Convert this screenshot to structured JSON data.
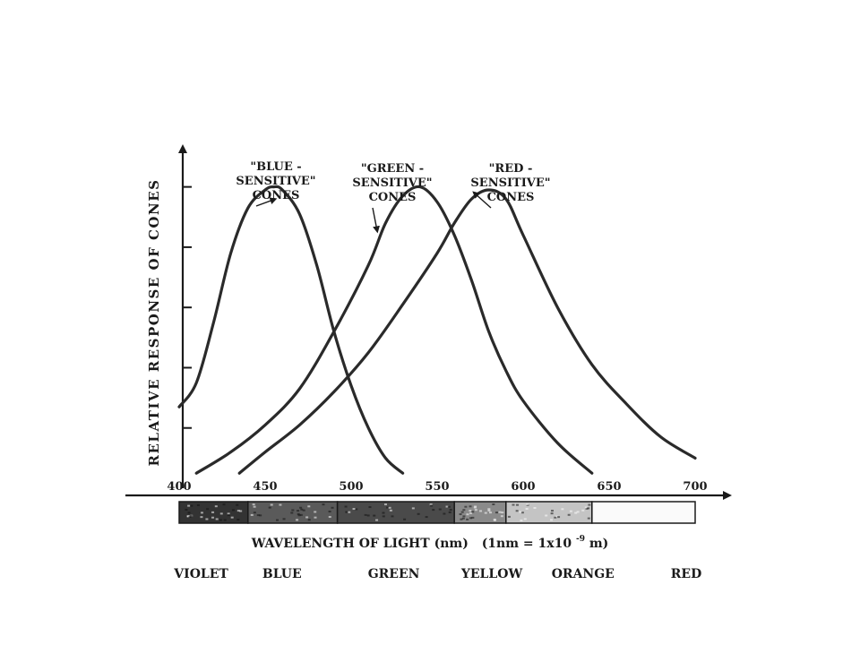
{
  "chart_data": {
    "type": "line",
    "ylabel": "RELATIVE RESPONSE OF CONES",
    "xlabel": "WAVELENGTH OF LIGHT (nm)",
    "xlabel_note": "(1nm = 1x10",
    "xlabel_note_end": " m)",
    "xlabel_exponent": "-9",
    "xlim": [
      400,
      700
    ],
    "x_ticks": [
      "400",
      "450",
      "500",
      "550",
      "600",
      "650",
      "700"
    ],
    "ylim": [
      0,
      1.1
    ],
    "y_tick_values": [
      0.2,
      0.4,
      0.6,
      0.8,
      1.0
    ],
    "grid": false,
    "series": [
      {
        "name": "\"BLUE - SENSITIVE\" CONES",
        "label_lines": [
          "\"BLUE -",
          "SENSITIVE\"",
          "CONES"
        ],
        "x": [
          400,
          410,
          420,
          430,
          440,
          450,
          455,
          460,
          470,
          480,
          490,
          500,
          510,
          520,
          530
        ],
        "y": [
          0.27,
          0.35,
          0.55,
          0.78,
          0.93,
          0.99,
          1.0,
          0.99,
          0.91,
          0.74,
          0.52,
          0.34,
          0.2,
          0.1,
          0.05
        ]
      },
      {
        "name": "\"GREEN - SENSITIVE\" CONES",
        "label_lines": [
          "\"GREEN -",
          "SENSITIVE\"",
          "CONES"
        ],
        "x": [
          410,
          430,
          450,
          470,
          490,
          510,
          520,
          530,
          540,
          550,
          560,
          570,
          580,
          590,
          600,
          620,
          640
        ],
        "y": [
          0.05,
          0.12,
          0.21,
          0.33,
          0.52,
          0.74,
          0.88,
          0.97,
          1.0,
          0.95,
          0.84,
          0.69,
          0.52,
          0.39,
          0.29,
          0.15,
          0.05
        ]
      },
      {
        "name": "\"RED - SENSITIVE\" CONES",
        "label_lines": [
          "\"RED -",
          "SENSITIVE\"",
          "CONES"
        ],
        "x": [
          435,
          450,
          470,
          490,
          510,
          530,
          550,
          560,
          570,
          580,
          590,
          600,
          620,
          640,
          660,
          680,
          700
        ],
        "y": [
          0.05,
          0.12,
          0.21,
          0.32,
          0.45,
          0.61,
          0.78,
          0.88,
          0.96,
          0.99,
          0.96,
          0.84,
          0.6,
          0.41,
          0.28,
          0.17,
          0.1
        ]
      }
    ],
    "annotations": [
      {
        "series_index": 0,
        "arrow_to": [
          455,
          0.94
        ]
      },
      {
        "series_index": 1,
        "arrow_to": [
          515,
          0.84
        ]
      },
      {
        "series_index": 2,
        "arrow_to": [
          572,
          0.96
        ]
      }
    ],
    "spectrum_bar": [
      {
        "from": 400,
        "to": 440,
        "shade": "#333333"
      },
      {
        "from": 440,
        "to": 492,
        "shade": "#5a5a5a"
      },
      {
        "from": 492,
        "to": 560,
        "shade": "#4a4a4a"
      },
      {
        "from": 560,
        "to": 590,
        "shade": "#8a8a8a"
      },
      {
        "from": 590,
        "to": 640,
        "shade": "#c4c4c4"
      },
      {
        "from": 640,
        "to": 700,
        "shade": "#fafafa"
      }
    ],
    "color_names": [
      {
        "label": "VIOLET",
        "at": 418
      },
      {
        "label": "BLUE",
        "at": 465
      },
      {
        "label": "GREEN",
        "at": 530
      },
      {
        "label": "YELLOW",
        "at": 587
      },
      {
        "label": "ORANGE",
        "at": 640
      },
      {
        "label": "RED",
        "at": 700
      }
    ]
  }
}
